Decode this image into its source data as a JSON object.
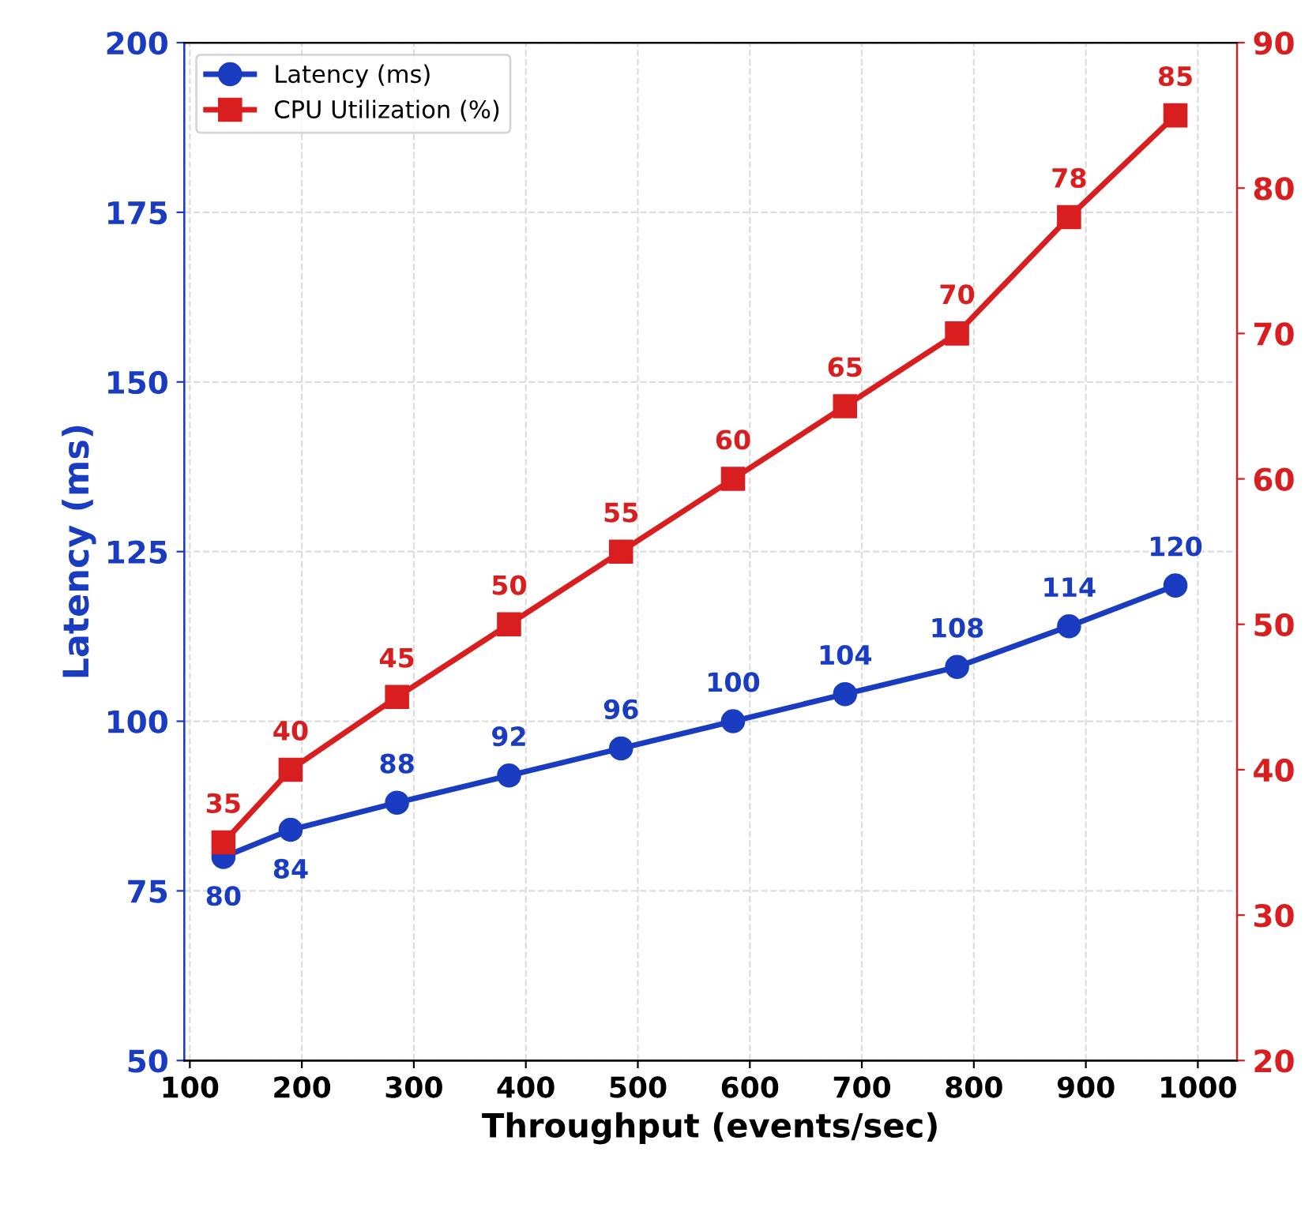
{
  "chart_data": {
    "type": "line",
    "xlabel": "Throughput (events/sec)",
    "ylabel": "Latency (ms)",
    "xlim": [
      95,
      1035
    ],
    "xticks": [
      100,
      200,
      300,
      400,
      500,
      600,
      700,
      800,
      900,
      1000
    ],
    "ylim": [
      50,
      200
    ],
    "yticks": [
      50,
      75,
      100,
      125,
      150,
      175,
      200
    ],
    "y2lim": [
      20,
      90
    ],
    "y2ticks": [
      20,
      30,
      40,
      50,
      60,
      70,
      80,
      90
    ],
    "grid": true,
    "legend": "top left",
    "data_labels": true,
    "line_style": "solid",
    "series": [
      {
        "name": "Latency (ms)",
        "color": "#1a3cc0",
        "marker": "circle",
        "x": [
          130,
          190,
          285,
          385,
          485,
          585,
          685,
          785,
          885,
          980
        ],
        "values": [
          80,
          84,
          88,
          92,
          96,
          100,
          104,
          108,
          114,
          120
        ]
      },
      {
        "name": "CPU Utilization (%)",
        "color": "#d81e1e",
        "marker": "square",
        "axis": "y2",
        "x": [
          130,
          190,
          285,
          385,
          485,
          585,
          685,
          785,
          885,
          980
        ],
        "values": [
          35,
          40,
          45,
          50,
          55,
          60,
          65,
          70,
          78,
          85
        ]
      }
    ]
  }
}
